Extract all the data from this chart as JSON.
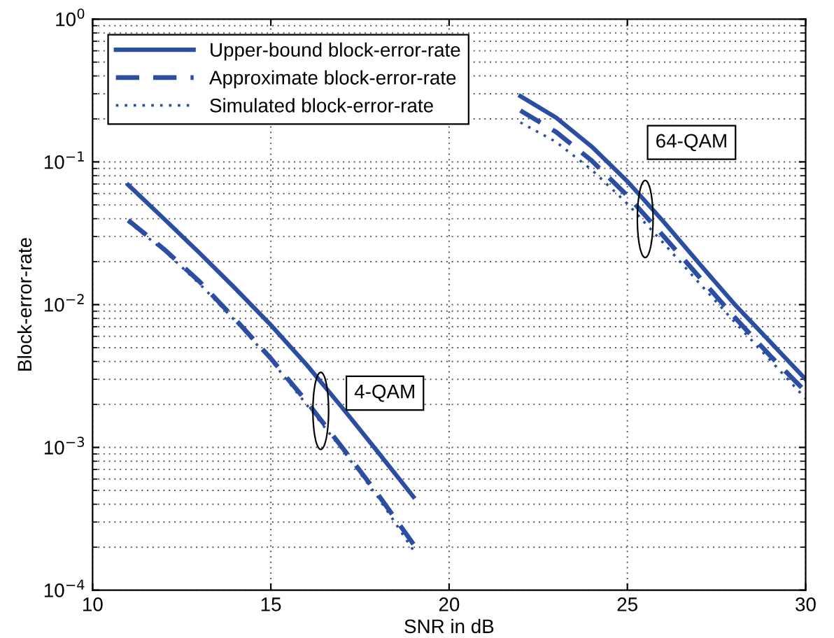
{
  "chart_data": {
    "type": "line",
    "xlabel": "SNR in dB",
    "ylabel": "Block-error-rate",
    "log": "y",
    "grid": true,
    "legend": "top left",
    "marker": "none",
    "xlim": [
      10,
      30
    ],
    "xticks": [
      10,
      15,
      20,
      25,
      30
    ],
    "ylim": [
      0.0001,
      1
    ],
    "yticks": [
      {
        "value": 0.0001,
        "label": "10$^{−4}$"
      },
      {
        "value": 0.001,
        "label": "10$^{−3}$"
      },
      {
        "value": 0.01,
        "label": "10$^{−2}$"
      },
      {
        "value": 0.1,
        "label": "10$^{−1}$"
      },
      {
        "value": 1,
        "label": "10$^{0}$"
      }
    ],
    "series": [
      {
        "name": "Upper-bound block-error-rate",
        "color": "#2b4ea2",
        "line_style": "solid",
        "x": [
          11,
          12,
          13,
          14,
          15,
          16,
          17,
          18,
          19
        ],
        "values": [
          0.069,
          0.04,
          0.023,
          0.013,
          0.0072,
          0.0038,
          0.0019,
          0.00093,
          0.00045
        ]
      },
      {
        "name": "Approximate block-error-rate",
        "color": "#2b4ea2",
        "line_style": "dashed",
        "x": [
          11,
          12,
          13,
          14,
          15,
          16,
          17,
          18,
          19
        ],
        "values": [
          0.039,
          0.0245,
          0.0145,
          0.0079,
          0.0042,
          0.0021,
          0.001,
          0.00047,
          0.00021
        ]
      },
      {
        "name": "Simulated block-error-rate",
        "color": "#2b4ea2",
        "line_style": "dotted",
        "x": [
          11,
          12,
          13,
          14,
          15,
          16,
          17,
          18,
          19
        ],
        "values": [
          0.038,
          0.024,
          0.014,
          0.0077,
          0.0041,
          0.002,
          0.00097,
          0.00045,
          0.00019
        ]
      },
      {
        "color": "#2b4ea2",
        "line_style": "solid",
        "x": [
          22,
          23,
          24,
          25,
          26,
          27,
          28,
          29,
          30
        ],
        "values": [
          0.289,
          0.204,
          0.128,
          0.073,
          0.0385,
          0.0196,
          0.0101,
          0.0055,
          0.003
        ]
      },
      {
        "color": "#2b4ea2",
        "line_style": "dashed",
        "x": [
          22,
          23,
          24,
          25,
          26,
          27,
          28,
          29,
          30
        ],
        "values": [
          0.229,
          0.162,
          0.102,
          0.058,
          0.0305,
          0.0158,
          0.0082,
          0.0044,
          0.00246
        ]
      },
      {
        "color": "#2b4ea2",
        "line_style": "dotted",
        "x": [
          22,
          23,
          24,
          25,
          26,
          27,
          28,
          29,
          30
        ],
        "values": [
          0.189,
          0.138,
          0.088,
          0.051,
          0.0272,
          0.0143,
          0.0076,
          0.0041,
          0.0022
        ]
      }
    ],
    "annotations": [
      "4-QAM",
      "64-QAM"
    ]
  }
}
